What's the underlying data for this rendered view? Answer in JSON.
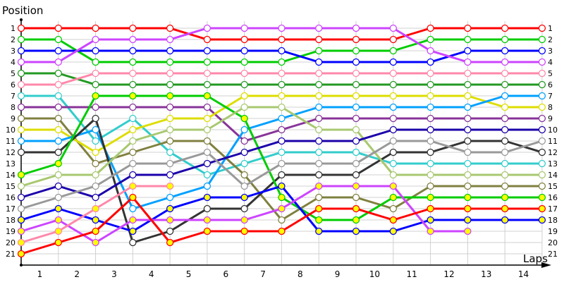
{
  "chart_data": {
    "type": "line",
    "title": "",
    "ylabel": "Position",
    "xlabel": "Laps",
    "x_tick_labels": [
      "1",
      "2",
      "3",
      "4",
      "5",
      "6",
      "7",
      "8",
      "9",
      "10",
      "11",
      "12",
      "13",
      "14"
    ],
    "x": [
      0,
      1,
      2,
      3,
      4,
      5,
      6,
      7,
      8,
      9,
      10,
      11,
      12,
      13,
      14
    ],
    "y_tick_labels": [
      "1",
      "2",
      "3",
      "4",
      "5",
      "6",
      "7",
      "8",
      "9",
      "10",
      "11",
      "12",
      "13",
      "14",
      "15",
      "16",
      "17",
      "18",
      "19",
      "20",
      "21"
    ],
    "ylim": [
      1,
      21
    ],
    "y_inverted": true,
    "grid": true,
    "legend": "none",
    "series": [
      {
        "name": "red",
        "color": "#ff0000",
        "marker_fill": "#ffffff",
        "values": [
          1,
          1,
          1,
          1,
          1,
          2,
          2,
          2,
          2,
          2,
          2,
          1,
          1,
          1,
          1
        ]
      },
      {
        "name": "green",
        "color": "#00cc00",
        "marker_fill": "#ffffff",
        "values": [
          2,
          2,
          4,
          4,
          4,
          4,
          4,
          4,
          3,
          3,
          3,
          2,
          2,
          2,
          2
        ]
      },
      {
        "name": "blue",
        "color": "#0000ff",
        "marker_fill": "#ffffff",
        "values": [
          3,
          3,
          3,
          3,
          3,
          3,
          3,
          3,
          4,
          4,
          4,
          4,
          3,
          3,
          3
        ]
      },
      {
        "name": "violet",
        "color": "#cc44ff",
        "marker_fill": "#ffffff",
        "values": [
          4,
          4,
          2,
          2,
          2,
          1,
          1,
          1,
          1,
          1,
          1,
          3,
          4,
          4,
          4
        ]
      },
      {
        "name": "dark-green",
        "color": "#229922",
        "marker_fill": "#ffffff",
        "values": [
          5,
          5,
          6,
          6,
          6,
          6,
          6,
          6,
          6,
          6,
          6,
          6,
          6,
          6,
          6
        ]
      },
      {
        "name": "pink",
        "color": "#ff88aa",
        "marker_fill": "#ffffff",
        "values": [
          6,
          6,
          5,
          5,
          5,
          5,
          5,
          5,
          5,
          5,
          5,
          5,
          5,
          5,
          5
        ]
      },
      {
        "name": "cyan",
        "color": "#33cccc",
        "marker_fill": "#ffffff",
        "values": [
          7,
          7,
          11,
          9,
          12,
          14,
          13,
          12,
          12,
          12,
          13,
          13,
          13,
          13,
          13
        ]
      },
      {
        "name": "purple",
        "color": "#883399",
        "marker_fill": "#ffffff",
        "values": [
          8,
          8,
          8,
          8,
          8,
          8,
          11,
          10,
          9,
          9,
          9,
          9,
          9,
          9,
          9
        ]
      },
      {
        "name": "olive",
        "color": "#808040",
        "marker_fill": "#ffffff",
        "values": [
          9,
          9,
          13,
          12,
          11,
          11,
          14,
          18,
          16,
          16,
          17,
          15,
          15,
          15,
          15
        ]
      },
      {
        "name": "yellow",
        "color": "#dddd00",
        "marker_fill": "#ffffff",
        "values": [
          10,
          10,
          12,
          10,
          9,
          9,
          7,
          7,
          7,
          7,
          7,
          7,
          7,
          8,
          8
        ]
      },
      {
        "name": "light-blue",
        "color": "#00a0ff",
        "marker_fill": "#ffffff",
        "values": [
          11,
          11,
          10,
          17,
          16,
          15,
          10,
          9,
          8,
          8,
          8,
          8,
          8,
          7,
          7
        ]
      },
      {
        "name": "black",
        "color": "#333333",
        "marker_fill": "#ffffff",
        "values": [
          12,
          12,
          9,
          20,
          19,
          17,
          17,
          14,
          14,
          14,
          12,
          12,
          11,
          11,
          12
        ]
      },
      {
        "name": "green-2",
        "color": "#00cc00",
        "marker_fill": "#ffff00",
        "values": [
          14,
          13,
          7,
          7,
          7,
          7,
          9,
          16,
          18,
          18,
          16,
          16,
          16,
          16,
          16
        ]
      },
      {
        "name": "light-green",
        "color": "#a8c870",
        "marker_fill": "#ffffff",
        "values": [
          15,
          14,
          14,
          11,
          10,
          10,
          8,
          8,
          10,
          10,
          14,
          14,
          14,
          14,
          14
        ]
      },
      {
        "name": "navy",
        "color": "#1a00aa",
        "marker_fill": "#ffffff",
        "values": [
          16,
          15,
          16,
          14,
          14,
          13,
          12,
          11,
          11,
          11,
          10,
          10,
          10,
          10,
          10
        ]
      },
      {
        "name": "gray",
        "color": "#999999",
        "marker_fill": "#ffffff",
        "values": [
          17,
          16,
          15,
          13,
          13,
          12,
          15,
          13,
          13,
          13,
          11,
          11,
          12,
          12,
          11
        ]
      },
      {
        "name": "blue-2",
        "color": "#0000ff",
        "marker_fill": "#ffff00",
        "values": [
          18,
          17,
          18,
          19,
          17,
          16,
          16,
          15,
          19,
          19,
          19,
          18,
          18,
          18,
          18
        ]
      },
      {
        "name": "violet-2",
        "color": "#cc44ff",
        "marker_fill": "#ffff00",
        "values": [
          19,
          18,
          20,
          18,
          18,
          18,
          18,
          17,
          15,
          15,
          15,
          19,
          19
        ]
      },
      {
        "name": "pink-2",
        "color": "#ff88aa",
        "marker_fill": "#ffff00",
        "values": [
          20,
          19,
          17,
          15,
          15
        ]
      },
      {
        "name": "red-2",
        "color": "#ff0000",
        "marker_fill": "#ffff00",
        "values": [
          21,
          20,
          19,
          16,
          20,
          19,
          19,
          19,
          17,
          17,
          18,
          17,
          17,
          17,
          17
        ]
      }
    ]
  }
}
